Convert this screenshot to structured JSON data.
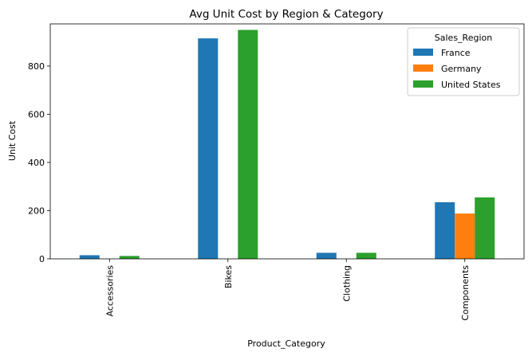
{
  "chart_data": {
    "type": "bar",
    "title": "Avg Unit Cost by Region & Category",
    "xlabel": "Product_Category",
    "ylabel": "Unit Cost",
    "categories": [
      "Accessories",
      "Bikes",
      "Clothing",
      "Components"
    ],
    "series": [
      {
        "name": "France",
        "color": "#1f77b4",
        "values": [
          15,
          915,
          25,
          235
        ]
      },
      {
        "name": "Germany",
        "color": "#ff7f0e",
        "values": [
          0,
          0,
          0,
          188
        ]
      },
      {
        "name": "United States",
        "color": "#2ca02c",
        "values": [
          12,
          950,
          25,
          255
        ]
      }
    ],
    "ylim": [
      0,
      975
    ],
    "yticks": [
      0,
      200,
      400,
      600,
      800
    ],
    "legend": {
      "title": "Sales_Region",
      "position": "top-right"
    },
    "grid": false
  }
}
